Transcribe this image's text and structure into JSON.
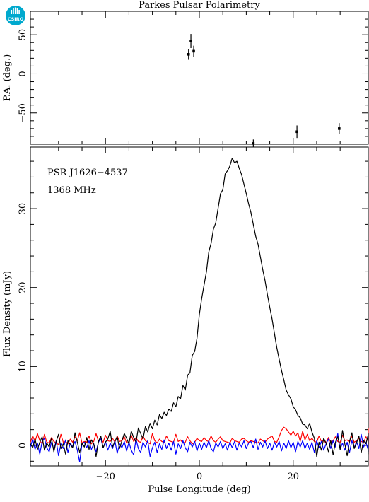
{
  "chart_data": {
    "title": "Parkes Pulsar Polarimetry",
    "logo_text": "CSIRO",
    "xlabel": "Pulse Longitude (deg)",
    "xlim": [
      -36,
      36
    ],
    "x_ticks": [
      -20,
      0,
      20
    ],
    "annotations": [
      "PSR J1626−4537",
      "1368 MHz"
    ],
    "pa_panel": {
      "type": "scatter",
      "ylabel": "P.A. (deg.)",
      "ylim": [
        -90,
        80
      ],
      "y_ticks": [
        50,
        0,
        -50
      ],
      "points": [
        {
          "x": -2.3,
          "y": 25,
          "err": 7
        },
        {
          "x": -1.8,
          "y": 42,
          "err": 9
        },
        {
          "x": -1.2,
          "y": 29,
          "err": 7
        },
        {
          "x": 11.5,
          "y": -89,
          "err": 5
        },
        {
          "x": 20.8,
          "y": -74,
          "err": 8
        },
        {
          "x": 29.8,
          "y": -70,
          "err": 7
        }
      ]
    },
    "profile_panel": {
      "type": "line",
      "ylabel": "Flux Density (mJy)",
      "ylim": [
        -2.6,
        37.8
      ],
      "y_ticks": [
        0,
        10,
        20,
        30
      ],
      "series": [
        {
          "color": "#000000",
          "x_start": -36,
          "x_step": 0.5,
          "values": [
            0.2,
            -0.3,
            0.8,
            -0.5,
            0.4,
            1.1,
            -0.6,
            0.3,
            -0.2,
            0.9,
            -0.8,
            0.5,
            1.4,
            -0.4,
            0.2,
            -1.1,
            0.6,
            0.1,
            -0.3,
            1.6,
            0.4,
            -0.9,
            0.3,
            -0.2,
            1.0,
            -0.5,
            0.7,
            0.2,
            -1.4,
            0.5,
            1.2,
            -0.3,
            0.4,
            0.8,
            1.8,
            -0.2,
            0.5,
            1.1,
            -0.4,
            0.6,
            1.5,
            0.9,
            0.2,
            1.8,
            1.0,
            0.4,
            2.2,
            1.5,
            0.8,
            2.4,
            1.7,
            2.8,
            2.1,
            3.2,
            2.6,
            3.9,
            3.4,
            4.2,
            3.8,
            4.6,
            4.3,
            5.4,
            4.9,
            6.2,
            5.9,
            7.6,
            7.0,
            8.9,
            9.2,
            11.4,
            11.9,
            13.6,
            16.6,
            18.6,
            20.3,
            22.0,
            24.5,
            25.6,
            27.4,
            28.2,
            30.1,
            31.9,
            32.4,
            34.4,
            34.8,
            35.4,
            36.4,
            35.8,
            36.0,
            35.1,
            34.3,
            33.1,
            31.9,
            30.6,
            29.5,
            28.0,
            26.5,
            25.5,
            23.9,
            22.3,
            20.9,
            19.1,
            17.5,
            16.0,
            14.2,
            12.4,
            10.9,
            9.5,
            8.3,
            7.0,
            6.4,
            5.9,
            4.9,
            4.5,
            3.8,
            3.5,
            2.7,
            2.6,
            2.1,
            2.8,
            1.7,
            0.9,
            -1.4,
            0.4,
            -0.6,
            0.9,
            0.3,
            -0.8,
            0.6,
            -1.2,
            0.4,
            1.1,
            -0.5,
            1.9,
            0.2,
            -1.3,
            0.5,
            1.6,
            -0.4,
            0.3,
            1.2,
            -0.9,
            0.6,
            0.2,
            1.4,
            -0.5,
            -1.1,
            0.8,
            0.3,
            -0.2,
            1.0,
            -0.6,
            0.4,
            1.5,
            -0.3,
            0.7
          ]
        },
        {
          "color": "#ff0000",
          "x_start": -36,
          "x_step": 0.5,
          "values": [
            0.4,
            1.2,
            0.5,
            1.5,
            0.6,
            0.2,
            1.4,
            0.4,
            0.3,
            1.0,
            0.5,
            0.3,
            0.1,
            1.4,
            0.4,
            0.5,
            0.2,
            0.8,
            0.4,
            1.1,
            0.6,
            1.6,
            0.3,
            0.5,
            0.4,
            1.2,
            0.2,
            0.5,
            1.5,
            0.5,
            0.8,
            0.4,
            1.3,
            0.6,
            0.5,
            0.9,
            0.4,
            1.2,
            0.5,
            0.6,
            1.1,
            0.3,
            0.4,
            1.3,
            0.5,
            1.0,
            0.5,
            0.4,
            1.2,
            0.6,
            0.4,
            0.2,
            1.5,
            0.6,
            0.3,
            0.8,
            0.5,
            0.4,
            1.2,
            0.6,
            0.5,
            0.4,
            1.4,
            0.5,
            0.7,
            0.3,
            0.4,
            1.1,
            0.6,
            0.2,
            0.4,
            0.9,
            0.6,
            0.5,
            1.0,
            0.6,
            0.5,
            1.2,
            0.6,
            0.4,
            0.8,
            1.1,
            0.6,
            0.5,
            0.4,
            0.3,
            0.9,
            0.6,
            0.5,
            0.4,
            0.8,
            0.9,
            0.6,
            0.4,
            0.6,
            0.5,
            0.4,
            0.3,
            0.8,
            0.6,
            0.4,
            0.8,
            1.0,
            1.2,
            0.5,
            0.4,
            1.1,
            1.9,
            2.3,
            2.1,
            1.7,
            1.3,
            1.8,
            1.2,
            1.6,
            0.5,
            1.8,
            0.7,
            1.4,
            0.6,
            0.9,
            0.5,
            0.4,
            1.2,
            0.5,
            0.6,
            0.3,
            1.0,
            0.4,
            0.6,
            1.1,
            0.5,
            0.4,
            1.3,
            0.6,
            0.7,
            0.4,
            1.2,
            0.4,
            0.6,
            0.9,
            0.5,
            0.4,
            1.1,
            0.5,
            2.1,
            0.6,
            0.4,
            1.3,
            0.6,
            0.4,
            2.0,
            0.5,
            0.4,
            0.2,
            1.6,
            0.6,
            0.5
          ]
        },
        {
          "color": "#0000ff",
          "x_start": -36,
          "x_step": 0.5,
          "values": [
            -0.2,
            0.8,
            -0.5,
            0.3,
            -1.1,
            0.5,
            0.9,
            -0.3,
            -0.8,
            0.4,
            -0.5,
            0.6,
            -1.3,
            0.2,
            -0.4,
            0.7,
            -0.9,
            0.3,
            -0.2,
            0.5,
            -0.6,
            -2.1,
            0.2,
            0.4,
            -0.3,
            0.6,
            -0.5,
            0.2,
            -0.8,
            0.4,
            0.9,
            -0.3,
            0.5,
            -0.6,
            0.3,
            -0.4,
            0.6,
            -1.0,
            0.2,
            -0.3,
            0.5,
            -0.7,
            0.4,
            -0.6,
            -1.2,
            0.8,
            -0.4,
            -0.9,
            0.4,
            -0.2,
            0.6,
            -1.4,
            -0.3,
            0.4,
            -0.9,
            0.2,
            -0.5,
            0.7,
            -0.4,
            0.3,
            -0.6,
            0.5,
            -1.1,
            0.2,
            -0.4,
            0.6,
            -0.3,
            -0.8,
            0.4,
            -0.2,
            0.5,
            -0.7,
            0.3,
            -0.5,
            0.4,
            -0.3,
            0.6,
            -0.4,
            -0.8,
            0.3,
            -0.2,
            0.5,
            -0.4,
            0.2,
            -0.6,
            0.4,
            -0.3,
            0.5,
            -0.6,
            0.3,
            -0.2,
            0.6,
            -0.4,
            0.3,
            0.5,
            -0.3,
            0.8,
            -0.5,
            0.4,
            -0.2,
            0.6,
            -0.4,
            0.3,
            -0.6,
            0.4,
            -0.2,
            0.5,
            -0.7,
            0.3,
            -0.4,
            0.6,
            -0.3,
            0.4,
            -0.8,
            0.5,
            -0.2,
            0.6,
            -0.4,
            0.3,
            -0.5,
            0.4,
            -0.9,
            0.6,
            -0.3,
            0.5,
            -0.6,
            0.2,
            0.8,
            -0.4,
            0.6,
            -0.2,
            1.5,
            -0.5,
            0.3,
            -0.6,
            0.4,
            -0.9,
            0.6,
            -0.3,
            0.5,
            -0.4,
            1.4,
            -0.2,
            0.4,
            -0.6,
            0.3,
            -0.5,
            0.6,
            -0.4,
            1.2,
            -0.3,
            0.4,
            -0.8,
            0.2,
            0.6,
            -0.4
          ]
        }
      ]
    }
  }
}
